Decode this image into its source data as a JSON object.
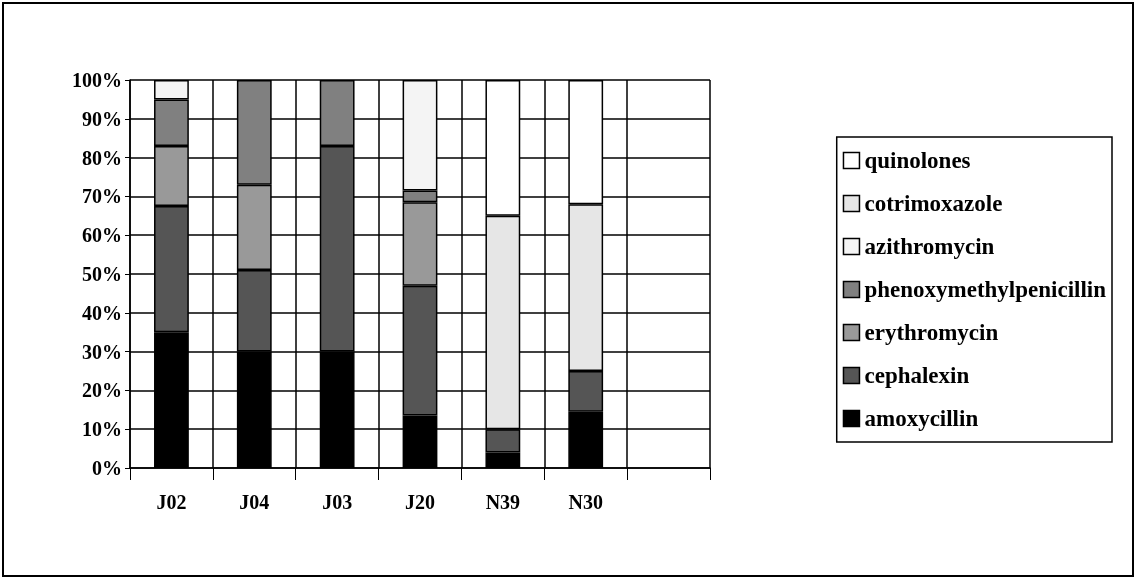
{
  "chart_data": {
    "type": "bar",
    "stacked": true,
    "categories": [
      "J02",
      "J04",
      "J03",
      "J20",
      "N39",
      "N30",
      null
    ],
    "series": [
      {
        "name": "amoxycillin",
        "color": "#000000",
        "values": [
          35,
          30,
          30,
          13.5,
          4,
          14.5,
          null
        ]
      },
      {
        "name": "cephalexin",
        "color": "#555555",
        "values": [
          32.5,
          21,
          53,
          33.5,
          6,
          10.5,
          null
        ]
      },
      {
        "name": "erythromycin",
        "color": "#999999",
        "values": [
          15.5,
          22,
          0,
          21.5,
          0,
          0,
          null
        ]
      },
      {
        "name": "phenoxymethylpenicillin",
        "color": "#808080",
        "values": [
          12,
          27,
          17,
          3,
          0,
          0,
          null
        ]
      },
      {
        "name": "azithromycin",
        "color": "#f4f4f4",
        "values": [
          5,
          0,
          0,
          28.5,
          0,
          0,
          null
        ]
      },
      {
        "name": "cotrimoxazole",
        "color": "#e6e6e6",
        "values": [
          0,
          0,
          0,
          0,
          55,
          43,
          null
        ]
      },
      {
        "name": "quinolones",
        "color": "#ffffff",
        "values": [
          0,
          0,
          0,
          0,
          35,
          32,
          null
        ]
      }
    ],
    "ylim": [
      0,
      100
    ],
    "yticks": [
      {
        "value": 0,
        "label": "0%"
      },
      {
        "value": 10,
        "label": "10%"
      },
      {
        "value": 20,
        "label": "20%"
      },
      {
        "value": 30,
        "label": "30%"
      },
      {
        "value": 40,
        "label": "40%"
      },
      {
        "value": 50,
        "label": "50%"
      },
      {
        "value": 60,
        "label": "60%"
      },
      {
        "value": 70,
        "label": "70%"
      },
      {
        "value": 80,
        "label": "80%"
      },
      {
        "value": 90,
        "label": "90%"
      },
      {
        "value": 100,
        "label": "100%"
      }
    ],
    "grid": true,
    "legend": "right"
  }
}
